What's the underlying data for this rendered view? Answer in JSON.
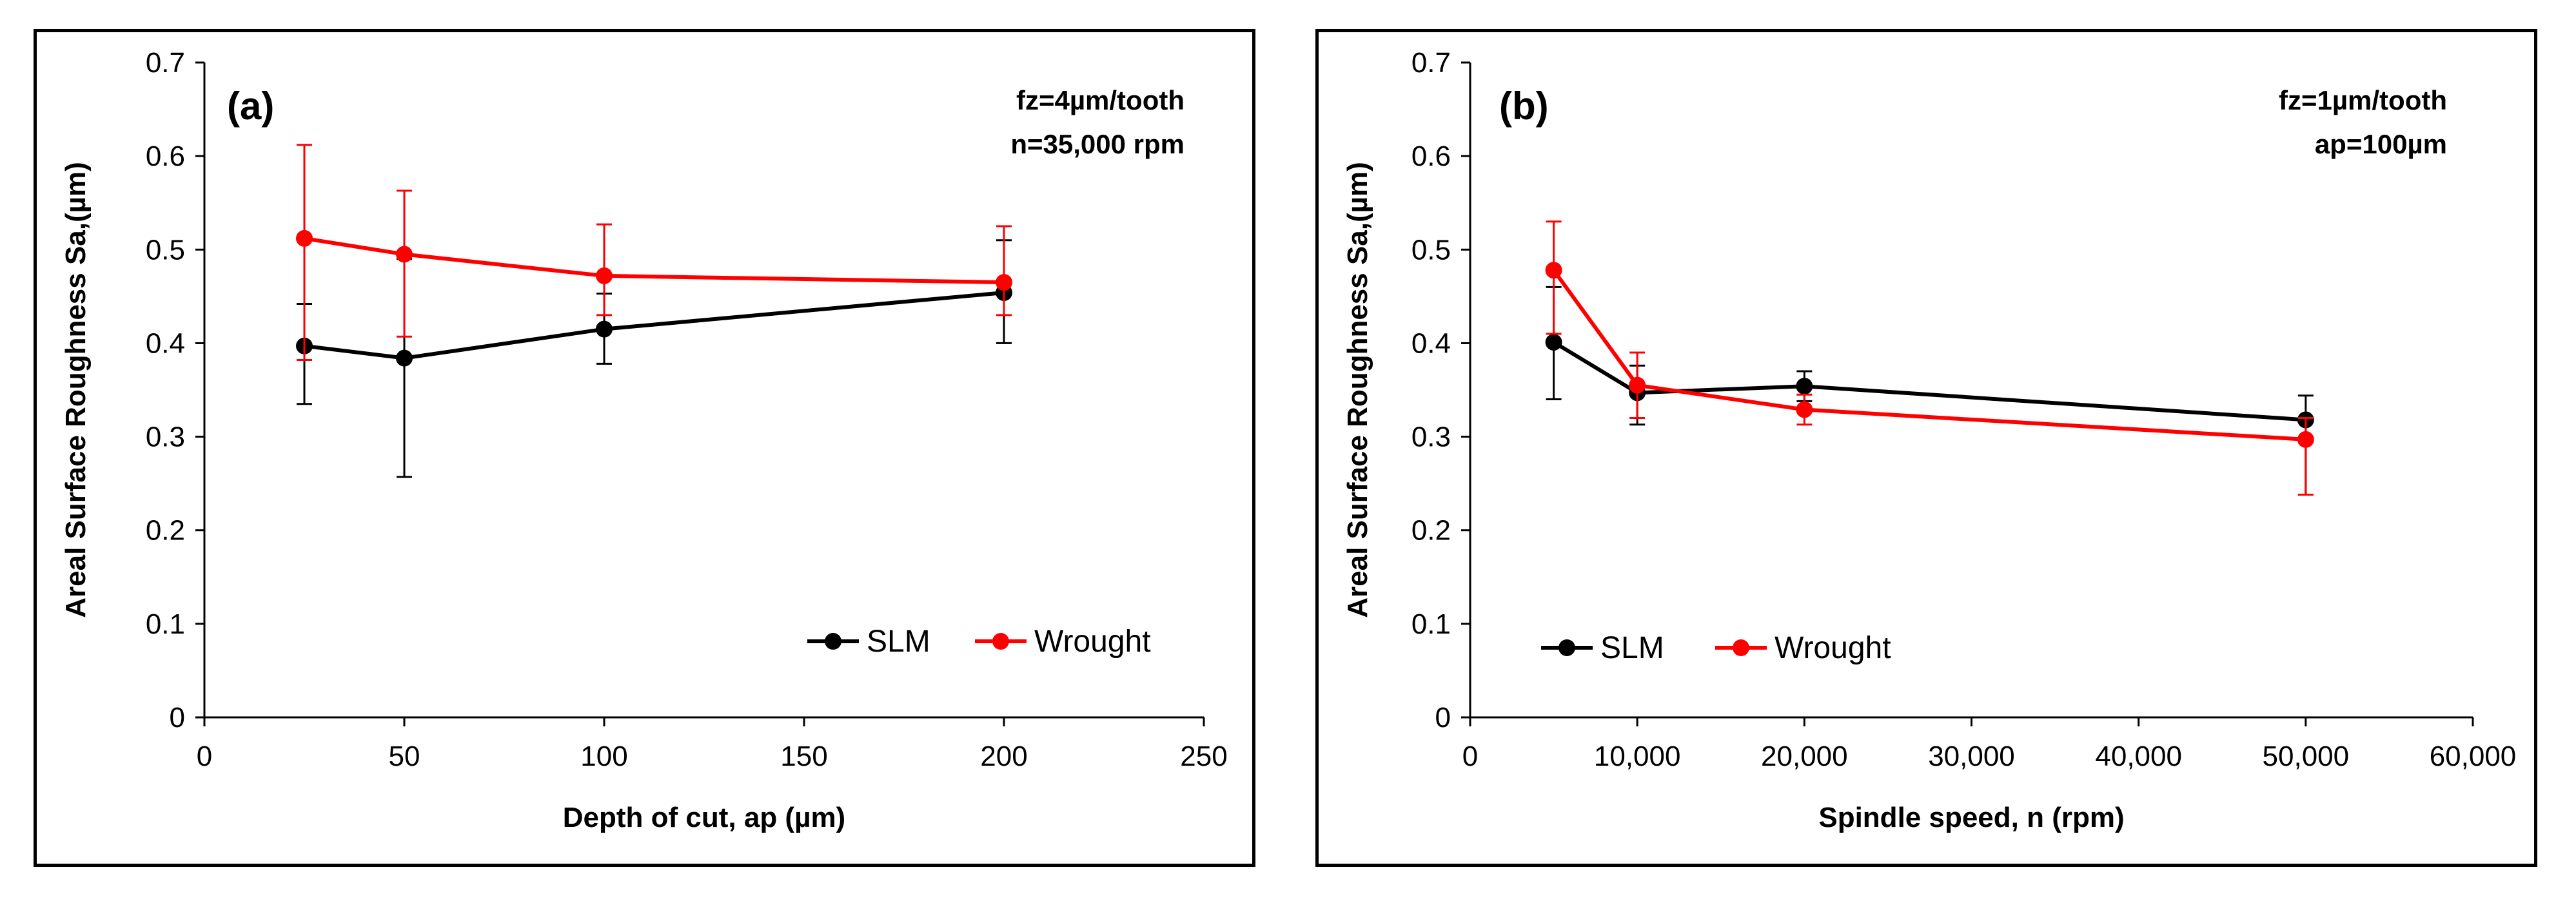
{
  "chart_data": [
    {
      "type": "line",
      "panel_label": "(a)",
      "annotations": [
        "fz=4µm/tooth",
        "n=35,000 rpm"
      ],
      "xlabel": "Depth of cut, ap (µm)",
      "ylabel": "Areal Surface Roughness Sa,(µm)",
      "xlim": [
        0,
        250
      ],
      "ylim": [
        0,
        0.7
      ],
      "xticks": [
        0,
        50,
        100,
        150,
        200,
        250
      ],
      "xtick_labels": [
        "0",
        "50",
        "100",
        "150",
        "200",
        "250"
      ],
      "yticks": [
        0,
        0.1,
        0.2,
        0.3,
        0.4,
        0.5,
        0.6,
        0.7
      ],
      "ytick_labels": [
        "0",
        "0.1",
        "0.2",
        "0.3",
        "0.4",
        "0.5",
        "0.6",
        "0.7"
      ],
      "grid": false,
      "legend_position": "bottom-right",
      "series": [
        {
          "name": "SLM",
          "color": "#000000",
          "x": [
            25,
            50,
            100,
            200
          ],
          "y": [
            0.397,
            0.384,
            0.415,
            0.454
          ],
          "err_low": [
            0.335,
            0.257,
            0.378,
            0.4
          ],
          "err_high": [
            0.442,
            0.49,
            0.453,
            0.51
          ]
        },
        {
          "name": "Wrought",
          "color": "#ff0000",
          "x": [
            25,
            50,
            100,
            200
          ],
          "y": [
            0.512,
            0.495,
            0.472,
            0.465
          ],
          "err_low": [
            0.382,
            0.407,
            0.43,
            0.43
          ],
          "err_high": [
            0.612,
            0.563,
            0.527,
            0.525
          ]
        }
      ]
    },
    {
      "type": "line",
      "panel_label": "(b)",
      "annotations": [
        "fz=1µm/tooth",
        "ap=100µm"
      ],
      "xlabel": "Spindle speed, n (rpm)",
      "ylabel": "Areal Surface Roughness Sa,(µm)",
      "xlim": [
        0,
        60000
      ],
      "ylim": [
        0,
        0.7
      ],
      "xticks": [
        0,
        10000,
        20000,
        30000,
        40000,
        50000,
        60000
      ],
      "xtick_labels": [
        "0",
        "10,000",
        "20,000",
        "30,000",
        "40,000",
        "50,000",
        "60,000"
      ],
      "yticks": [
        0,
        0.1,
        0.2,
        0.3,
        0.4,
        0.5,
        0.6,
        0.7
      ],
      "ytick_labels": [
        "0",
        "0.1",
        "0.2",
        "0.3",
        "0.4",
        "0.5",
        "0.6",
        "0.7"
      ],
      "grid": false,
      "legend_position": "bottom-left",
      "series": [
        {
          "name": "SLM",
          "color": "#000000",
          "x": [
            5000,
            10000,
            20000,
            50000
          ],
          "y": [
            0.401,
            0.347,
            0.354,
            0.318
          ],
          "err_low": [
            0.34,
            0.313,
            0.338,
            0.238
          ],
          "err_high": [
            0.46,
            0.376,
            0.37,
            0.344
          ]
        },
        {
          "name": "Wrought",
          "color": "#ff0000",
          "x": [
            5000,
            10000,
            20000,
            50000
          ],
          "y": [
            0.478,
            0.355,
            0.329,
            0.297
          ],
          "err_low": [
            0.41,
            0.32,
            0.313,
            0.238
          ],
          "err_high": [
            0.53,
            0.39,
            0.345,
            0.32
          ]
        }
      ]
    }
  ]
}
